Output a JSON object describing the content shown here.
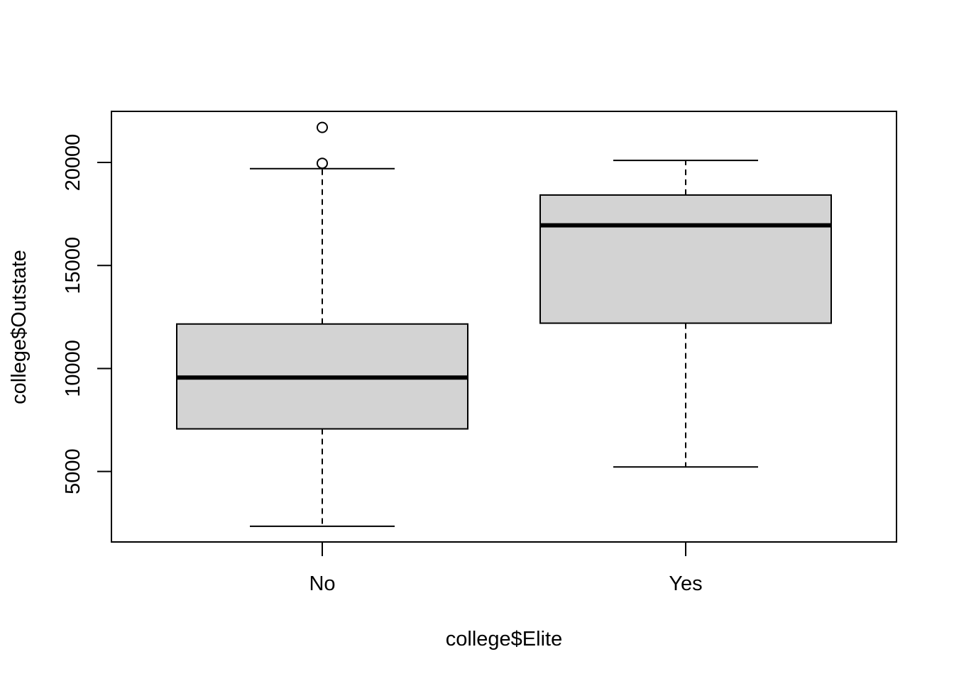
{
  "chart_data": {
    "type": "boxplot",
    "title": "",
    "xlabel": "college$Elite",
    "ylabel": "college$Outstate",
    "categories": [
      "No",
      "Yes"
    ],
    "boxes": [
      {
        "category": "No",
        "whisker_low": 2340,
        "q1": 7070,
        "median": 9560,
        "q3": 12160,
        "whisker_high": 19700,
        "outliers": [
          19960,
          21700
        ]
      },
      {
        "category": "Yes",
        "whisker_low": 5220,
        "q1": 12200,
        "median": 16950,
        "q3": 18420,
        "whisker_high": 20100,
        "outliers": []
      }
    ],
    "yticks": [
      5000,
      10000,
      15000,
      20000
    ],
    "ylim": [
      1580,
      22480
    ],
    "grid": false,
    "legend": "none",
    "colors": {
      "box_fill": "#d3d3d3",
      "stroke": "#000000",
      "background": "#ffffff"
    }
  }
}
